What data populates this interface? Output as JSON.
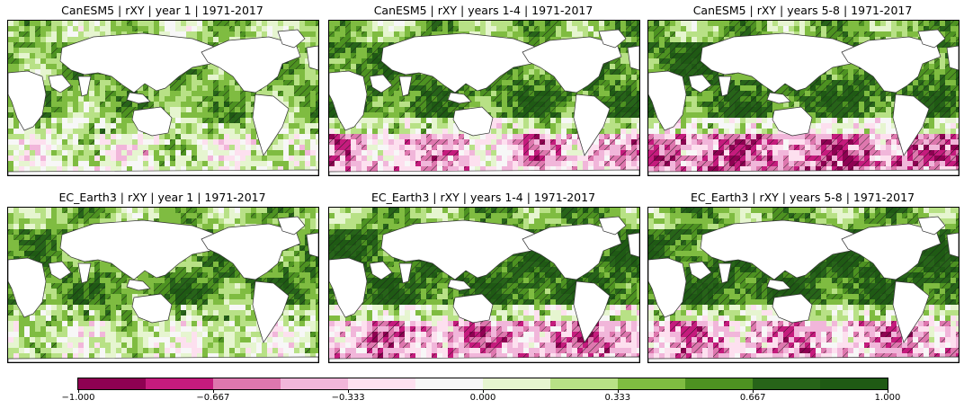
{
  "chart_data": {
    "type": "heatmap",
    "panels": [
      {
        "title": "CanESM5 | rXY | year 1 | 1971-2017",
        "model": "CanESM5",
        "lead": "year 1",
        "mean_level": 0.42,
        "southern_level": 0.05
      },
      {
        "title": "CanESM5 | rXY | years 1-4 | 1971-2017",
        "model": "CanESM5",
        "lead": "years 1-4",
        "mean_level": 0.62,
        "southern_level": -0.35
      },
      {
        "title": "CanESM5 | rXY | years 5-8 | 1971-2017",
        "model": "CanESM5",
        "lead": "years 5-8",
        "mean_level": 0.66,
        "southern_level": -0.55
      },
      {
        "title": "EC_Earth3 | rXY | year 1 | 1971-2017",
        "model": "EC_Earth3",
        "lead": "year 1",
        "mean_level": 0.55,
        "southern_level": 0.1
      },
      {
        "title": "EC_Earth3 | rXY | years 1-4 | 1971-2017",
        "model": "EC_Earth3",
        "lead": "years 1-4",
        "mean_level": 0.7,
        "southern_level": -0.45
      },
      {
        "title": "EC_Earth3 | rXY | years 5-8 | 1971-2017",
        "model": "EC_Earth3",
        "lead": "years 5-8",
        "mean_level": 0.72,
        "southern_level": -0.4
      }
    ],
    "colorbar": {
      "range": [
        -1.0,
        1.0
      ],
      "ticks": [
        "-1.000",
        "-0.667",
        "-0.333",
        "0.000",
        "0.333",
        "0.667",
        "1.000"
      ],
      "colors": [
        "#8e0152",
        "#c51b7d",
        "#de77ae",
        "#f1b6da",
        "#fde0ef",
        "#f7f7f7",
        "#e6f5d0",
        "#b8e186",
        "#7fbc41",
        "#4d9221",
        "#276419",
        "#1f5a14"
      ]
    },
    "hatching": "significant correlation",
    "grid": false
  }
}
